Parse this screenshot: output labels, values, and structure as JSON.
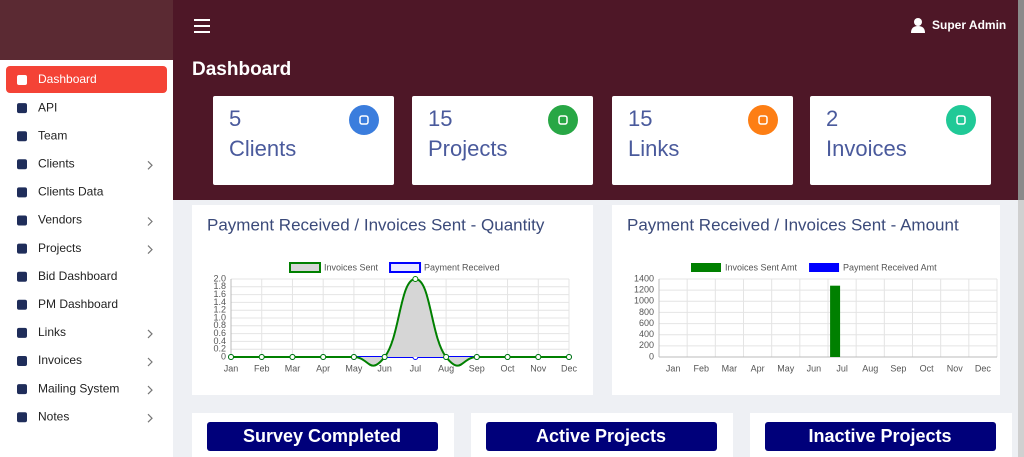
{
  "sidebar": {
    "items": [
      {
        "label": "Dashboard",
        "active": true
      },
      {
        "label": "API"
      },
      {
        "label": "Team"
      },
      {
        "label": "Clients",
        "expandable": true
      },
      {
        "label": "Clients Data"
      },
      {
        "label": "Vendors",
        "expandable": true
      },
      {
        "label": "Projects",
        "expandable": true
      },
      {
        "label": "Bid Dashboard"
      },
      {
        "label": "PM Dashboard"
      },
      {
        "label": "Links",
        "expandable": true
      },
      {
        "label": "Invoices",
        "expandable": true
      },
      {
        "label": "Mailing System",
        "expandable": true
      },
      {
        "label": "Notes",
        "expandable": true
      }
    ]
  },
  "header": {
    "user": "Super Admin"
  },
  "page": {
    "title": "Dashboard"
  },
  "cards": [
    {
      "value": 5,
      "label": "Clients",
      "color": "#3b7ddd"
    },
    {
      "value": 15,
      "label": "Projects",
      "color": "#28a745"
    },
    {
      "value": 15,
      "label": "Links",
      "color": "#fd7e14"
    },
    {
      "value": 2,
      "label": "Invoices",
      "color": "#20c997"
    }
  ],
  "chart_data": [
    {
      "type": "line",
      "title": "Payment Received / Invoices Sent - Quantity",
      "categories": [
        "Jan",
        "Feb",
        "Mar",
        "Apr",
        "May",
        "Jun",
        "Jul",
        "Aug",
        "Sep",
        "Oct",
        "Nov",
        "Dec"
      ],
      "series": [
        {
          "name": "Invoices Sent",
          "color": "#008000",
          "fill": "#d6d6d6",
          "values": [
            0,
            0,
            0,
            0,
            0,
            0,
            2,
            0,
            0,
            0,
            0,
            0
          ]
        },
        {
          "name": "Payment Received",
          "color": "#0000ff",
          "fill": "#e8e8ff",
          "values": [
            0,
            0,
            0,
            0,
            0,
            0,
            0,
            0,
            0,
            0,
            0,
            0
          ]
        }
      ],
      "ylim": [
        0,
        2
      ],
      "yticks": [
        0,
        0.2,
        0.4,
        0.6,
        0.8,
        {
          "value": 1,
          "label": "1.0"
        },
        1.2,
        1.4,
        1.6,
        1.8,
        {
          "value": 2,
          "label": "2.0"
        }
      ],
      "grid": true
    },
    {
      "type": "bar",
      "title": "Payment Received / Invoices Sent - Amount",
      "categories": [
        "Jan",
        "Feb",
        "Mar",
        "Apr",
        "May",
        "Jun",
        "Jul",
        "Aug",
        "Sep",
        "Oct",
        "Nov",
        "Dec"
      ],
      "series": [
        {
          "name": "Invoices Sent Amt",
          "color": "#008000",
          "values": [
            0,
            0,
            0,
            0,
            0,
            0,
            1280,
            0,
            0,
            0,
            0,
            0
          ]
        },
        {
          "name": "Payment Received Amt",
          "color": "#0000ff",
          "values": [
            0,
            0,
            0,
            0,
            0,
            0,
            0,
            0,
            0,
            0,
            0,
            0
          ]
        }
      ],
      "ylim": [
        0,
        1400
      ],
      "yticks": [
        0,
        200,
        400,
        600,
        800,
        1000,
        1200,
        1400
      ],
      "grid": true
    }
  ],
  "panels": [
    {
      "title": "Survey Completed"
    },
    {
      "title": "Active Projects"
    },
    {
      "title": "Inactive Projects"
    }
  ]
}
